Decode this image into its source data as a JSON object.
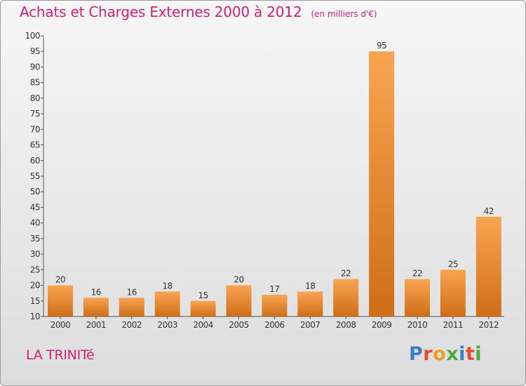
{
  "title": "Achats et Charges Externes 2000 à 2012",
  "subtitle": "(en milliers d'€)",
  "commune": "LA TRINITé",
  "logo": {
    "letters": [
      "P",
      "r",
      "o",
      "x",
      "i",
      "t",
      "i"
    ],
    "colors": [
      "#3b7ec8",
      "#e84a2c",
      "#f0a020",
      "#4caa3c",
      "#3b7ec8",
      "#e84a2c",
      "#4caa3c"
    ]
  },
  "colors": {
    "bar_top": "#f8a552",
    "bar_bottom": "#cf6d18",
    "title": "#d0207a"
  },
  "chart_data": {
    "type": "bar",
    "title": "Achats et Charges Externes 2000 à 2012",
    "categories": [
      "2000",
      "2001",
      "2002",
      "2003",
      "2004",
      "2005",
      "2006",
      "2007",
      "2008",
      "2009",
      "2010",
      "2011",
      "2012"
    ],
    "values": [
      20,
      16,
      16,
      18,
      15,
      20,
      17,
      18,
      22,
      95,
      22,
      25,
      42
    ],
    "ylim": [
      10,
      100
    ],
    "yticks": [
      10,
      15,
      20,
      25,
      30,
      35,
      40,
      45,
      50,
      55,
      60,
      65,
      70,
      75,
      80,
      85,
      90,
      95,
      100
    ],
    "grid": false,
    "legend": "none"
  }
}
